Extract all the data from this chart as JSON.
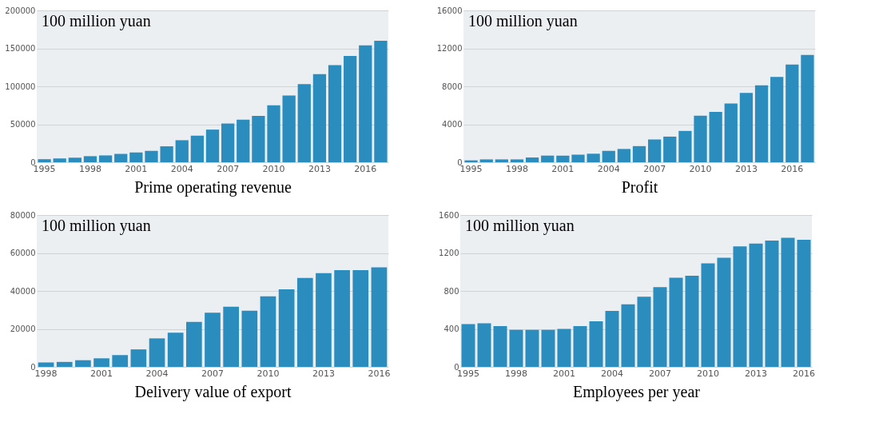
{
  "chart_data": [
    {
      "type": "bar",
      "xlabel": "Prime operating revenue",
      "annotations": [
        "100 million yuan"
      ],
      "color": "#2b8cbe",
      "grid": "y",
      "categories": [
        "1995",
        null,
        null,
        "1998",
        null,
        null,
        "2001",
        null,
        null,
        "2004",
        null,
        null,
        "2007",
        null,
        null,
        "2010",
        null,
        null,
        "2013",
        null,
        null,
        "2016",
        null
      ],
      "values": [
        4000,
        5000,
        6000,
        8000,
        9000,
        11000,
        13000,
        15000,
        21000,
        29000,
        35000,
        43000,
        51000,
        56000,
        61000,
        75000,
        88000,
        103000,
        116000,
        128000,
        140000,
        154000,
        160000
      ],
      "ylim": [
        0,
        200000
      ],
      "yticks": [
        0,
        50000,
        100000,
        150000,
        200000
      ]
    },
    {
      "type": "bar",
      "xlabel": "Profit",
      "annotations": [
        "100 million yuan"
      ],
      "color": "#2b8cbe",
      "grid": "y",
      "categories": [
        "1995",
        null,
        null,
        "1998",
        null,
        null,
        "2001",
        null,
        null,
        "2004",
        null,
        null,
        "2007",
        null,
        null,
        "2010",
        null,
        null,
        "2013",
        null,
        null,
        "2016",
        null
      ],
      "values": [
        200,
        300,
        300,
        300,
        500,
        700,
        700,
        800,
        900,
        1200,
        1400,
        1700,
        2400,
        2700,
        3300,
        4900,
        5300,
        6200,
        7300,
        8100,
        9000,
        10300,
        11300
      ],
      "ylim": [
        0,
        16000
      ],
      "yticks": [
        0,
        4000,
        8000,
        12000,
        16000
      ]
    },
    {
      "type": "bar",
      "xlabel": "Delivery value of export",
      "annotations": [
        "100 million yuan"
      ],
      "color": "#2b8cbe",
      "grid": "y",
      "categories": [
        "1998",
        null,
        null,
        "2001",
        null,
        null,
        "2004",
        null,
        null,
        "2007",
        null,
        null,
        "2010",
        null,
        null,
        "2013",
        null,
        null,
        "2016"
      ],
      "values": [
        2300,
        2600,
        3500,
        4500,
        6200,
        9200,
        15000,
        18000,
        23700,
        28500,
        31700,
        29600,
        37200,
        40800,
        46800,
        49400,
        50900,
        50900,
        52400
      ],
      "ylim": [
        0,
        80000
      ],
      "yticks": [
        0,
        20000,
        40000,
        60000,
        80000
      ]
    },
    {
      "type": "bar",
      "xlabel": "Employees per year",
      "annotations": [
        "100 million yuan"
      ],
      "color": "#2b8cbe",
      "grid": "y",
      "categories": [
        "1995",
        null,
        null,
        "1998",
        null,
        null,
        "2001",
        null,
        null,
        "2004",
        null,
        null,
        "2007",
        null,
        null,
        "2010",
        null,
        null,
        "2013",
        null,
        null,
        "2016"
      ],
      "values": [
        450,
        460,
        430,
        390,
        390,
        390,
        400,
        430,
        480,
        590,
        660,
        740,
        840,
        940,
        960,
        1090,
        1150,
        1270,
        1300,
        1330,
        1360,
        1340
      ],
      "ylim": [
        0,
        1600
      ],
      "yticks": [
        0,
        400,
        800,
        1200,
        1600
      ]
    }
  ]
}
